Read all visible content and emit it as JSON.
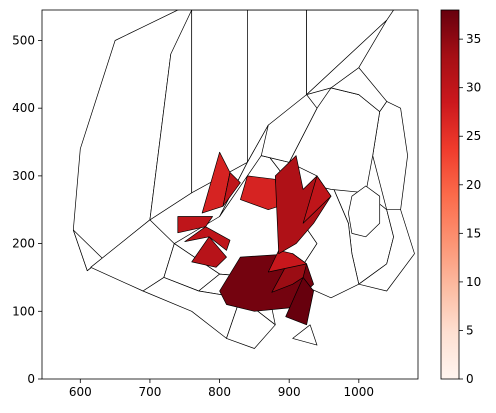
{
  "chart_data": {
    "type": "heatmap",
    "title": "",
    "xlabel": "",
    "ylabel": "",
    "xlim": [
      545,
      1085
    ],
    "ylim": [
      0,
      545
    ],
    "x_ticks": [
      600,
      700,
      800,
      900,
      1000
    ],
    "y_ticks": [
      0,
      100,
      200,
      300,
      400,
      500
    ],
    "grid": false,
    "colorbar": {
      "colormap": "Reds",
      "placement": "right",
      "vmin": 0,
      "vmax": 38,
      "ticks": [
        0,
        5,
        10,
        15,
        20,
        25,
        30,
        35
      ],
      "colors": [
        "#fff5f0",
        "#fee0d2",
        "#fcbba1",
        "#fc9272",
        "#fb6a4a",
        "#ef3b2c",
        "#cb181d",
        "#a50f15",
        "#67000d"
      ]
    },
    "regions": [
      {
        "id": "r01",
        "value": 0,
        "outline": [
          [
            610,
            160
          ],
          [
            700,
            235
          ],
          [
            730,
            480
          ],
          [
            810,
            550
          ],
          [
            810,
            560
          ],
          [
            740,
            545
          ],
          [
            690,
            520
          ],
          [
            650,
            500
          ],
          [
            600,
            340
          ],
          [
            590,
            220
          ],
          [
            610,
            160
          ]
        ]
      },
      {
        "id": "r02",
        "value": 0,
        "outline": [
          [
            700,
            235
          ],
          [
            760,
            275
          ],
          [
            760,
            545
          ],
          [
            730,
            480
          ],
          [
            700,
            235
          ]
        ]
      },
      {
        "id": "r03",
        "value": 0,
        "outline": [
          [
            760,
            275
          ],
          [
            840,
            320
          ],
          [
            840,
            545
          ],
          [
            760,
            545
          ],
          [
            760,
            275
          ]
        ]
      },
      {
        "id": "r04",
        "value": 0,
        "outline": [
          [
            840,
            320
          ],
          [
            925,
            420
          ],
          [
            925,
            545
          ],
          [
            840,
            545
          ],
          [
            840,
            320
          ]
        ]
      },
      {
        "id": "r05",
        "value": 0,
        "outline": [
          [
            925,
            420
          ],
          [
            1040,
            530
          ],
          [
            1050,
            545
          ],
          [
            925,
            545
          ],
          [
            925,
            420
          ]
        ]
      },
      {
        "id": "r06",
        "value": 0,
        "outline": [
          [
            590,
            220
          ],
          [
            640,
            170
          ],
          [
            690,
            190
          ],
          [
            700,
            235
          ],
          [
            610,
            160
          ],
          [
            590,
            220
          ]
        ]
      },
      {
        "id": "r07",
        "value": 0,
        "outline": [
          [
            615,
            165
          ],
          [
            690,
            130
          ],
          [
            720,
            150
          ],
          [
            735,
            200
          ],
          [
            700,
            235
          ],
          [
            615,
            165
          ]
        ]
      },
      {
        "id": "r08",
        "value": 0,
        "outline": [
          [
            735,
            200
          ],
          [
            800,
            155
          ],
          [
            860,
            150
          ],
          [
            905,
            145
          ],
          [
            940,
            200
          ],
          [
            920,
            230
          ],
          [
            900,
            290
          ],
          [
            870,
            330
          ],
          [
            870,
            375
          ],
          [
            840,
            320
          ],
          [
            800,
            240
          ],
          [
            735,
            200
          ]
        ]
      },
      {
        "id": "r09",
        "value": 0,
        "outline": [
          [
            960,
            290
          ],
          [
            1010,
            275
          ],
          [
            1040,
            250
          ],
          [
            1050,
            210
          ],
          [
            1040,
            170
          ],
          [
            1000,
            140
          ],
          [
            990,
            185
          ],
          [
            985,
            230
          ],
          [
            960,
            290
          ]
        ]
      },
      {
        "id": "r10",
        "value": 0,
        "outline": [
          [
            905,
            145
          ],
          [
            960,
            120
          ],
          [
            1000,
            140
          ],
          [
            990,
            185
          ],
          [
            985,
            230
          ],
          [
            960,
            290
          ],
          [
            940,
            300
          ],
          [
            920,
            230
          ],
          [
            940,
            200
          ],
          [
            905,
            145
          ]
        ]
      },
      {
        "id": "r11",
        "value": 0,
        "outline": [
          [
            720,
            150
          ],
          [
            770,
            130
          ],
          [
            800,
            155
          ],
          [
            735,
            200
          ],
          [
            720,
            150
          ]
        ]
      },
      {
        "id": "r12",
        "value": 0,
        "outline": [
          [
            770,
            130
          ],
          [
            830,
            120
          ],
          [
            880,
            80
          ],
          [
            870,
            130
          ],
          [
            860,
            150
          ],
          [
            800,
            155
          ],
          [
            770,
            130
          ]
        ]
      },
      {
        "id": "r13",
        "value": 0,
        "outline": [
          [
            690,
            130
          ],
          [
            760,
            100
          ],
          [
            810,
            60
          ],
          [
            830,
            120
          ],
          [
            770,
            130
          ],
          [
            720,
            150
          ],
          [
            690,
            130
          ]
        ]
      },
      {
        "id": "r14",
        "value": 0,
        "outline": [
          [
            810,
            60
          ],
          [
            850,
            45
          ],
          [
            880,
            80
          ],
          [
            830,
            120
          ],
          [
            810,
            60
          ]
        ]
      },
      {
        "id": "r15",
        "value": 0,
        "outline": [
          [
            905,
            60
          ],
          [
            940,
            50
          ],
          [
            930,
            80
          ],
          [
            905,
            60
          ]
        ]
      },
      {
        "id": "r16",
        "value": 0,
        "outline": [
          [
            1000,
            140
          ],
          [
            1040,
            130
          ],
          [
            1080,
            185
          ],
          [
            1060,
            250
          ],
          [
            1040,
            250
          ],
          [
            1050,
            210
          ],
          [
            1040,
            170
          ],
          [
            1000,
            140
          ]
        ]
      },
      {
        "id": "r17",
        "value": 0,
        "outline": [
          [
            1040,
            250
          ],
          [
            1060,
            250
          ],
          [
            1070,
            330
          ],
          [
            1060,
            400
          ],
          [
            1040,
            410
          ],
          [
            1030,
            395
          ],
          [
            1020,
            330
          ],
          [
            1040,
            250
          ]
        ]
      },
      {
        "id": "r18",
        "value": 0,
        "outline": [
          [
            900,
            320
          ],
          [
            920,
            290
          ],
          [
            960,
            280
          ],
          [
            1010,
            275
          ],
          [
            1020,
            330
          ],
          [
            1030,
            395
          ],
          [
            1000,
            420
          ],
          [
            960,
            430
          ],
          [
            940,
            400
          ],
          [
            920,
            360
          ],
          [
            900,
            320
          ]
        ]
      },
      {
        "id": "r19",
        "value": 0,
        "outline": [
          [
            1000,
            420
          ],
          [
            1030,
            395
          ],
          [
            1040,
            410
          ],
          [
            1000,
            460
          ],
          [
            960,
            430
          ],
          [
            1000,
            420
          ]
        ]
      },
      {
        "id": "r20",
        "value": 0,
        "outline": [
          [
            925,
            420
          ],
          [
            960,
            430
          ],
          [
            1000,
            460
          ],
          [
            1040,
            530
          ],
          [
            925,
            420
          ]
        ]
      },
      {
        "id": "r21",
        "value": 0,
        "outline": [
          [
            800,
            240
          ],
          [
            840,
            320
          ],
          [
            870,
            375
          ],
          [
            870,
            330
          ],
          [
            900,
            290
          ],
          [
            920,
            230
          ],
          [
            940,
            300
          ],
          [
            900,
            320
          ],
          [
            860,
            330
          ],
          [
            800,
            240
          ]
        ]
      },
      {
        "id": "r22",
        "value": 0,
        "outline": [
          [
            860,
            330
          ],
          [
            900,
            320
          ],
          [
            920,
            360
          ],
          [
            940,
            400
          ],
          [
            925,
            420
          ],
          [
            870,
            375
          ],
          [
            860,
            330
          ]
        ]
      },
      {
        "id": "c01",
        "value": 37,
        "outline": [
          [
            830,
            180
          ],
          [
            905,
            185
          ],
          [
            925,
            170
          ],
          [
            935,
            140
          ],
          [
            900,
            105
          ],
          [
            850,
            100
          ],
          [
            810,
            110
          ],
          [
            800,
            130
          ],
          [
            830,
            180
          ]
        ]
      },
      {
        "id": "c02",
        "value": 38,
        "outline": [
          [
            895,
            92
          ],
          [
            925,
            80
          ],
          [
            935,
            130
          ],
          [
            920,
            150
          ],
          [
            895,
            92
          ]
        ]
      },
      {
        "id": "c03",
        "value": 34,
        "outline": [
          [
            875,
            128
          ],
          [
            905,
            140
          ],
          [
            920,
            150
          ],
          [
            925,
            170
          ],
          [
            905,
            185
          ],
          [
            875,
            128
          ]
        ]
      },
      {
        "id": "c04",
        "value": 29,
        "outline": [
          [
            870,
            158
          ],
          [
            885,
            190
          ],
          [
            905,
            185
          ],
          [
            925,
            170
          ],
          [
            870,
            158
          ]
        ]
      },
      {
        "id": "c05",
        "value": 31,
        "outline": [
          [
            760,
            173
          ],
          [
            795,
            165
          ],
          [
            810,
            180
          ],
          [
            785,
            210
          ],
          [
            760,
            173
          ]
        ]
      },
      {
        "id": "c06",
        "value": 30,
        "outline": [
          [
            750,
            203
          ],
          [
            785,
            210
          ],
          [
            810,
            190
          ],
          [
            815,
            205
          ],
          [
            780,
            225
          ],
          [
            750,
            203
          ]
        ]
      },
      {
        "id": "c07",
        "value": 30,
        "outline": [
          [
            740,
            216
          ],
          [
            780,
            225
          ],
          [
            790,
            240
          ],
          [
            740,
            240
          ],
          [
            740,
            216
          ]
        ]
      },
      {
        "id": "c08",
        "value": 27,
        "outline": [
          [
            775,
            245
          ],
          [
            805,
            255
          ],
          [
            815,
            305
          ],
          [
            800,
            335
          ],
          [
            775,
            245
          ]
        ]
      },
      {
        "id": "c09",
        "value": 30,
        "outline": [
          [
            805,
            255
          ],
          [
            830,
            290
          ],
          [
            815,
            305
          ],
          [
            805,
            255
          ]
        ]
      },
      {
        "id": "c10",
        "value": 27,
        "outline": [
          [
            830,
            265
          ],
          [
            870,
            250
          ],
          [
            885,
            255
          ],
          [
            880,
            295
          ],
          [
            840,
            300
          ],
          [
            830,
            265
          ]
        ]
      },
      {
        "id": "c11",
        "value": 32,
        "outline": [
          [
            885,
            185
          ],
          [
            910,
            200
          ],
          [
            935,
            230
          ],
          [
            960,
            270
          ],
          [
            940,
            300
          ],
          [
            920,
            280
          ],
          [
            910,
            330
          ],
          [
            880,
            300
          ],
          [
            885,
            185
          ]
        ]
      },
      {
        "id": "c12",
        "value": 30,
        "outline": [
          [
            920,
            230
          ],
          [
            960,
            270
          ],
          [
            940,
            300
          ],
          [
            920,
            230
          ]
        ]
      },
      {
        "id": "h01",
        "value": 0,
        "outline": [
          [
            990,
            215
          ],
          [
            1010,
            210
          ],
          [
            1030,
            230
          ],
          [
            1030,
            270
          ],
          [
            1010,
            285
          ],
          [
            990,
            270
          ],
          [
            985,
            245
          ],
          [
            990,
            215
          ]
        ]
      }
    ]
  }
}
